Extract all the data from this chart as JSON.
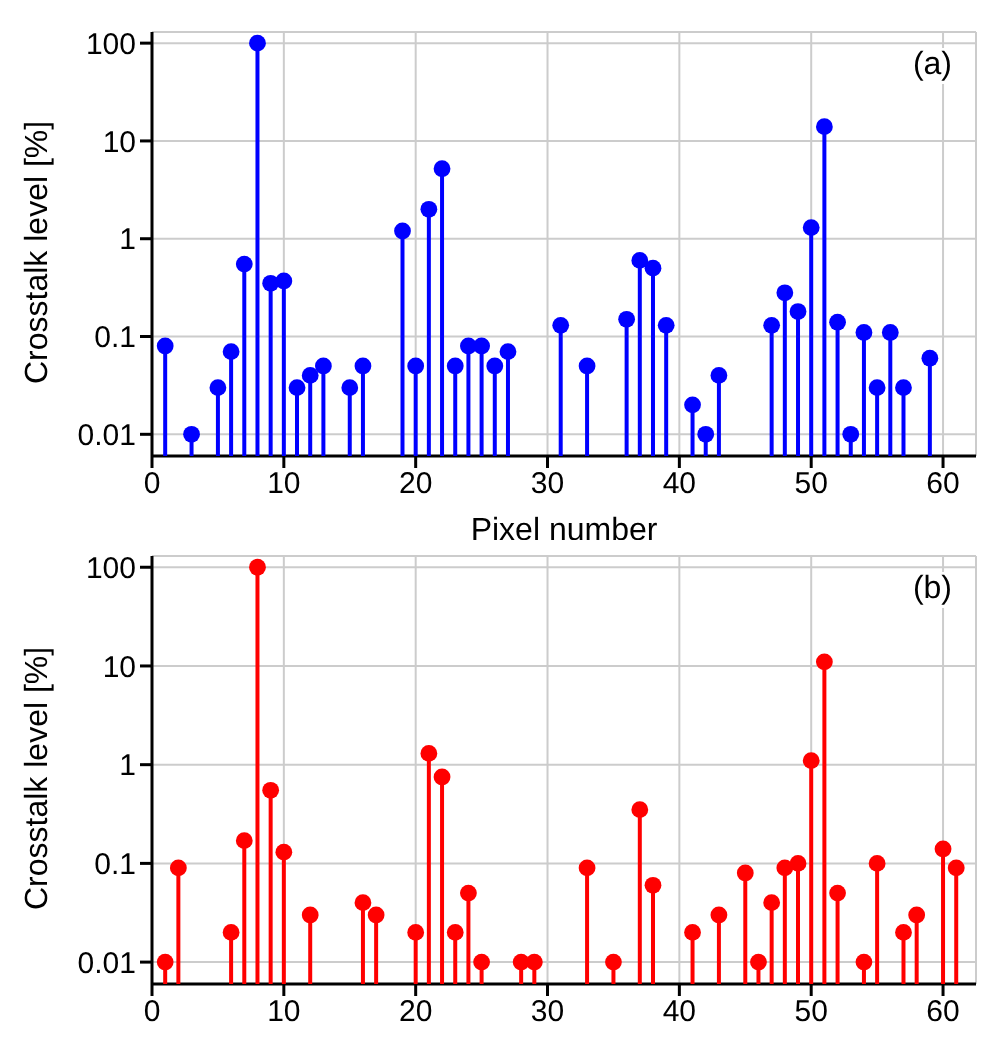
{
  "chart_data": [
    {
      "type": "lollipop",
      "ylabel": "Crosstalk level [%]",
      "xlabel": "Pixel number",
      "annotations": [
        "(a)"
      ],
      "log": "y",
      "grid": true,
      "marker": "circle",
      "xlim": [
        0,
        62.5
      ],
      "xticks": [
        0,
        10,
        20,
        30,
        40,
        50,
        60
      ],
      "ylim": [
        0.006,
        130
      ],
      "yticks": [
        0.01,
        0.1,
        1,
        10,
        100
      ],
      "series": [
        {
          "color": "#0000ff",
          "x": [
            1,
            3,
            5,
            6,
            7,
            8,
            9,
            10,
            11,
            12,
            13,
            15,
            16,
            19,
            20,
            21,
            22,
            23,
            24,
            25,
            26,
            27,
            31,
            33,
            36,
            37,
            38,
            39,
            41,
            42,
            43,
            47,
            48,
            49,
            50,
            51,
            52,
            53,
            54,
            55,
            56,
            57,
            59
          ],
          "values": [
            0.08,
            0.01,
            0.03,
            0.07,
            0.55,
            100,
            0.35,
            0.37,
            0.03,
            0.04,
            0.05,
            0.03,
            0.05,
            1.2,
            0.05,
            2,
            5.2,
            0.05,
            0.08,
            0.08,
            0.05,
            0.07,
            0.13,
            0.05,
            0.15,
            0.6,
            0.5,
            0.13,
            0.02,
            0.01,
            0.04,
            0.13,
            0.28,
            0.18,
            1.3,
            14,
            0.14,
            0.01,
            0.11,
            0.03,
            0.11,
            0.03,
            0.06
          ]
        }
      ]
    },
    {
      "type": "lollipop",
      "ylabel": "Crosstalk level [%]",
      "annotations": [
        "(b)"
      ],
      "log": "y",
      "grid": true,
      "marker": "circle",
      "xlim": [
        0,
        62.5
      ],
      "xticks": [
        0,
        10,
        20,
        30,
        40,
        50,
        60
      ],
      "ylim": [
        0.006,
        130
      ],
      "yticks": [
        0.01,
        0.1,
        1,
        10,
        100
      ],
      "series": [
        {
          "color": "#ff0000",
          "x": [
            1,
            2,
            6,
            7,
            8,
            9,
            10,
            12,
            16,
            17,
            20,
            21,
            22,
            23,
            24,
            25,
            28,
            29,
            33,
            35,
            37,
            38,
            41,
            43,
            45,
            46,
            47,
            48,
            49,
            50,
            51,
            52,
            54,
            55,
            57,
            58,
            60,
            61
          ],
          "values": [
            0.01,
            0.09,
            0.02,
            0.17,
            100,
            0.55,
            0.13,
            0.03,
            0.04,
            0.03,
            0.02,
            1.3,
            0.75,
            0.02,
            0.05,
            0.01,
            0.01,
            0.01,
            0.09,
            0.01,
            0.35,
            0.06,
            0.02,
            0.03,
            0.08,
            0.01,
            0.04,
            0.09,
            0.1,
            1.1,
            11,
            0.05,
            0.01,
            0.1,
            0.02,
            0.03,
            0.14,
            0.09
          ]
        }
      ]
    }
  ]
}
